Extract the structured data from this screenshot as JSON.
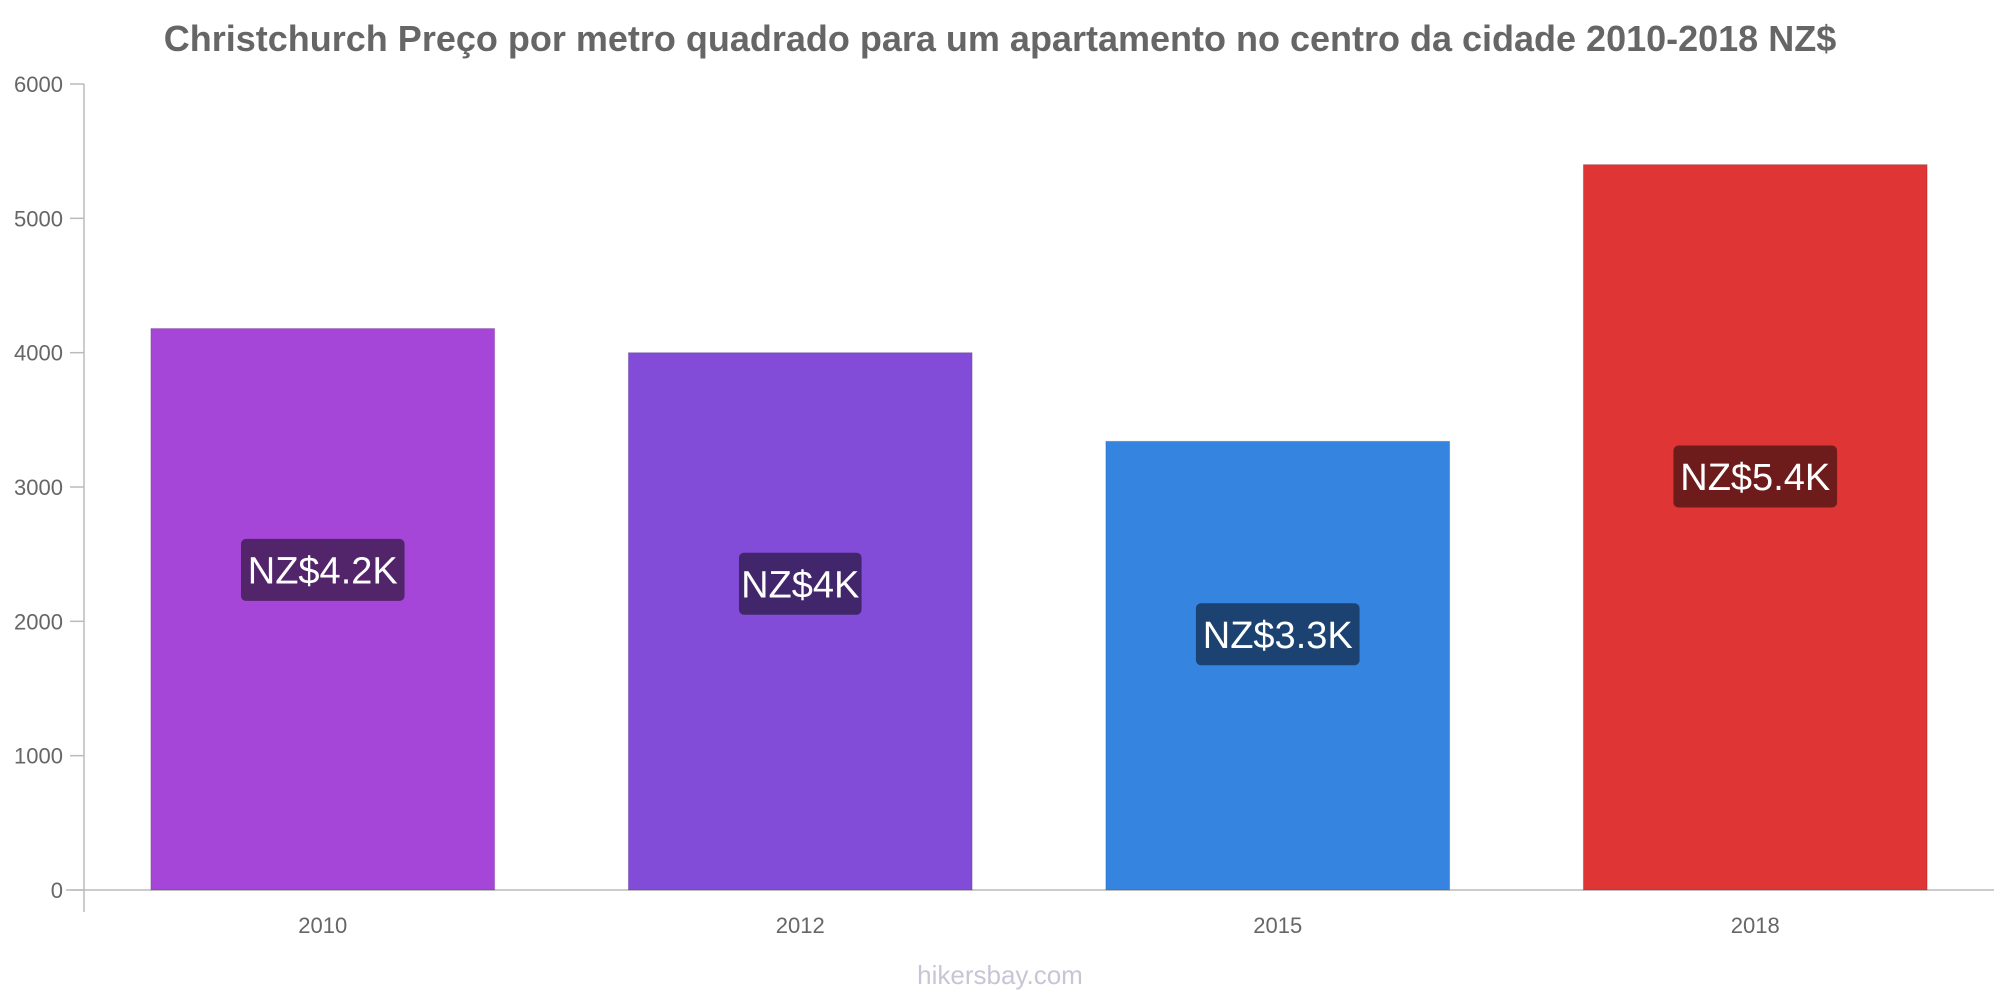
{
  "chart_data": {
    "type": "bar",
    "title": "Christchurch Preço por metro quadrado para um apartamento no centro da cidade 2010-2018 NZ$",
    "xlabel": "",
    "ylabel": "",
    "categories": [
      "2010",
      "2012",
      "2015",
      "2018"
    ],
    "values": [
      4180,
      4000,
      3340,
      5400
    ],
    "data_labels": [
      "NZ$4.2K",
      "NZ$4K",
      "NZ$3.3K",
      "NZ$5.4K"
    ],
    "bar_colors": [
      "#a646d9",
      "#824cd9",
      "#3584e0",
      "#e03535"
    ],
    "label_bg_colors": [
      "#52256b",
      "#42266b",
      "#1b4270",
      "#6e1b1b"
    ],
    "ylim": [
      0,
      6000
    ],
    "yticks": [
      0,
      1000,
      2000,
      3000,
      4000,
      5000,
      6000
    ],
    "grid": false,
    "legend": "none"
  },
  "watermark": "hikersbay.com"
}
